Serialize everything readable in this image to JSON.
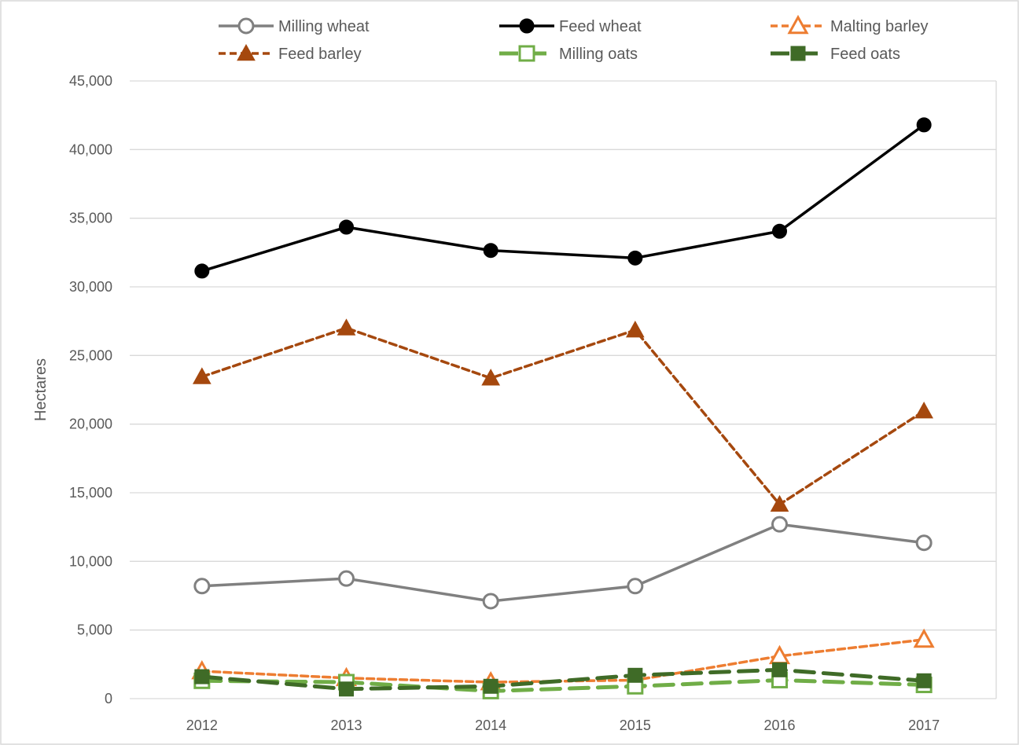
{
  "chart_data": {
    "type": "line",
    "title": "",
    "xlabel": "",
    "ylabel": "Hectares",
    "categories": [
      "2012",
      "2013",
      "2014",
      "2015",
      "2016",
      "2017"
    ],
    "ylim": [
      0,
      45000
    ],
    "yticks": [
      0,
      5000,
      10000,
      15000,
      20000,
      25000,
      30000,
      35000,
      40000,
      45000
    ],
    "ytick_labels": [
      "0",
      "5,000",
      "10,000",
      "15,000",
      "20,000",
      "25,000",
      "30,000",
      "35,000",
      "40,000",
      "45,000"
    ],
    "grid": true,
    "legend_position": "top",
    "series": [
      {
        "name": "Milling wheat",
        "values": [
          8200,
          8750,
          7100,
          8200,
          12700,
          11350
        ],
        "color": "#808080",
        "line_style": "solid",
        "marker": "open-circle"
      },
      {
        "name": "Feed wheat",
        "values": [
          31150,
          34350,
          32650,
          32100,
          34050,
          41800
        ],
        "color": "#000000",
        "line_style": "solid",
        "marker": "filled-circle"
      },
      {
        "name": "Malting barley",
        "values": [
          2000,
          1500,
          1200,
          1350,
          3100,
          4300
        ],
        "color": "#ED7D31",
        "line_style": "dashed",
        "marker": "open-triangle"
      },
      {
        "name": "Feed barley",
        "values": [
          23450,
          27000,
          23350,
          26850,
          14150,
          20950
        ],
        "color": "#A5480E",
        "line_style": "dashed",
        "marker": "filled-triangle"
      },
      {
        "name": "Milling oats",
        "values": [
          1300,
          1200,
          550,
          900,
          1350,
          1000
        ],
        "color": "#70AD47",
        "line_style": "long-dash",
        "marker": "open-square"
      },
      {
        "name": "Feed oats",
        "values": [
          1600,
          700,
          900,
          1700,
          2100,
          1300
        ],
        "color": "#3F6B27",
        "line_style": "long-dash",
        "marker": "filled-square"
      }
    ]
  }
}
